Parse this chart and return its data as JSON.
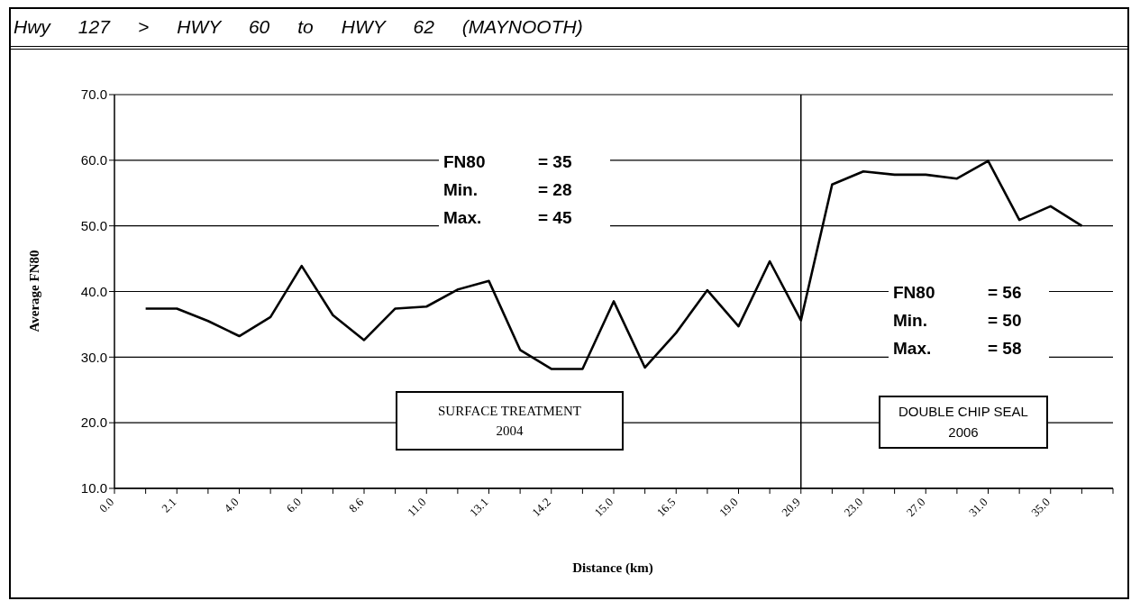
{
  "chart_data": {
    "type": "line",
    "title": "Hwy 127 > HWY 60 to HWY 62 (MAYNOOTH)",
    "xlabel": "Distance (km)",
    "ylabel": "Average FN80",
    "categories": [
      "0.0",
      null,
      "2.1",
      null,
      "4.0",
      null,
      "6.0",
      null,
      "8.6",
      null,
      "11.0",
      null,
      "13.1",
      null,
      "14.2",
      null,
      "15.0",
      null,
      "16.5",
      null,
      "19.0",
      null,
      "20.9",
      null,
      "23.0",
      null,
      "27.0",
      null,
      "31.0",
      null,
      "35.0",
      null,
      null
    ],
    "series": [
      {
        "color": "#000000",
        "values": [
          null,
          37.4,
          37.4,
          35.5,
          33.2,
          36.1,
          43.9,
          36.4,
          32.6,
          37.4,
          37.7,
          40.3,
          41.6,
          31.1,
          28.2,
          28.2,
          38.5,
          28.4,
          33.7,
          40.2,
          34.7,
          44.6,
          35.6,
          56.3,
          58.3,
          57.8,
          57.8,
          57.2,
          59.9,
          50.9,
          53.0,
          50.0,
          null
        ]
      }
    ],
    "ylim": [
      10,
      70
    ],
    "yticks": [
      {
        "value": 10,
        "label": "10.0"
      },
      {
        "value": 20,
        "label": "20.0"
      },
      {
        "value": 30,
        "label": "30.0"
      },
      {
        "value": 40,
        "label": "40.0"
      },
      {
        "value": 50,
        "label": "50.0"
      },
      {
        "value": 60,
        "label": "60.0"
      },
      {
        "value": 70,
        "label": "70.0"
      }
    ],
    "grid": "y",
    "line_style": "solid",
    "ref_lines": [
      {
        "axis": "x",
        "value": "20.9",
        "color": "#000000"
      }
    ],
    "annotations": [
      "FN80 = 35\nMin. = 28\nMax. = 45",
      "FN80 = 56\nMin. = 50\nMax. = 58",
      "SURFACE TREATMENT\n2004",
      "DOUBLE CHIP SEAL\n2006"
    ]
  }
}
